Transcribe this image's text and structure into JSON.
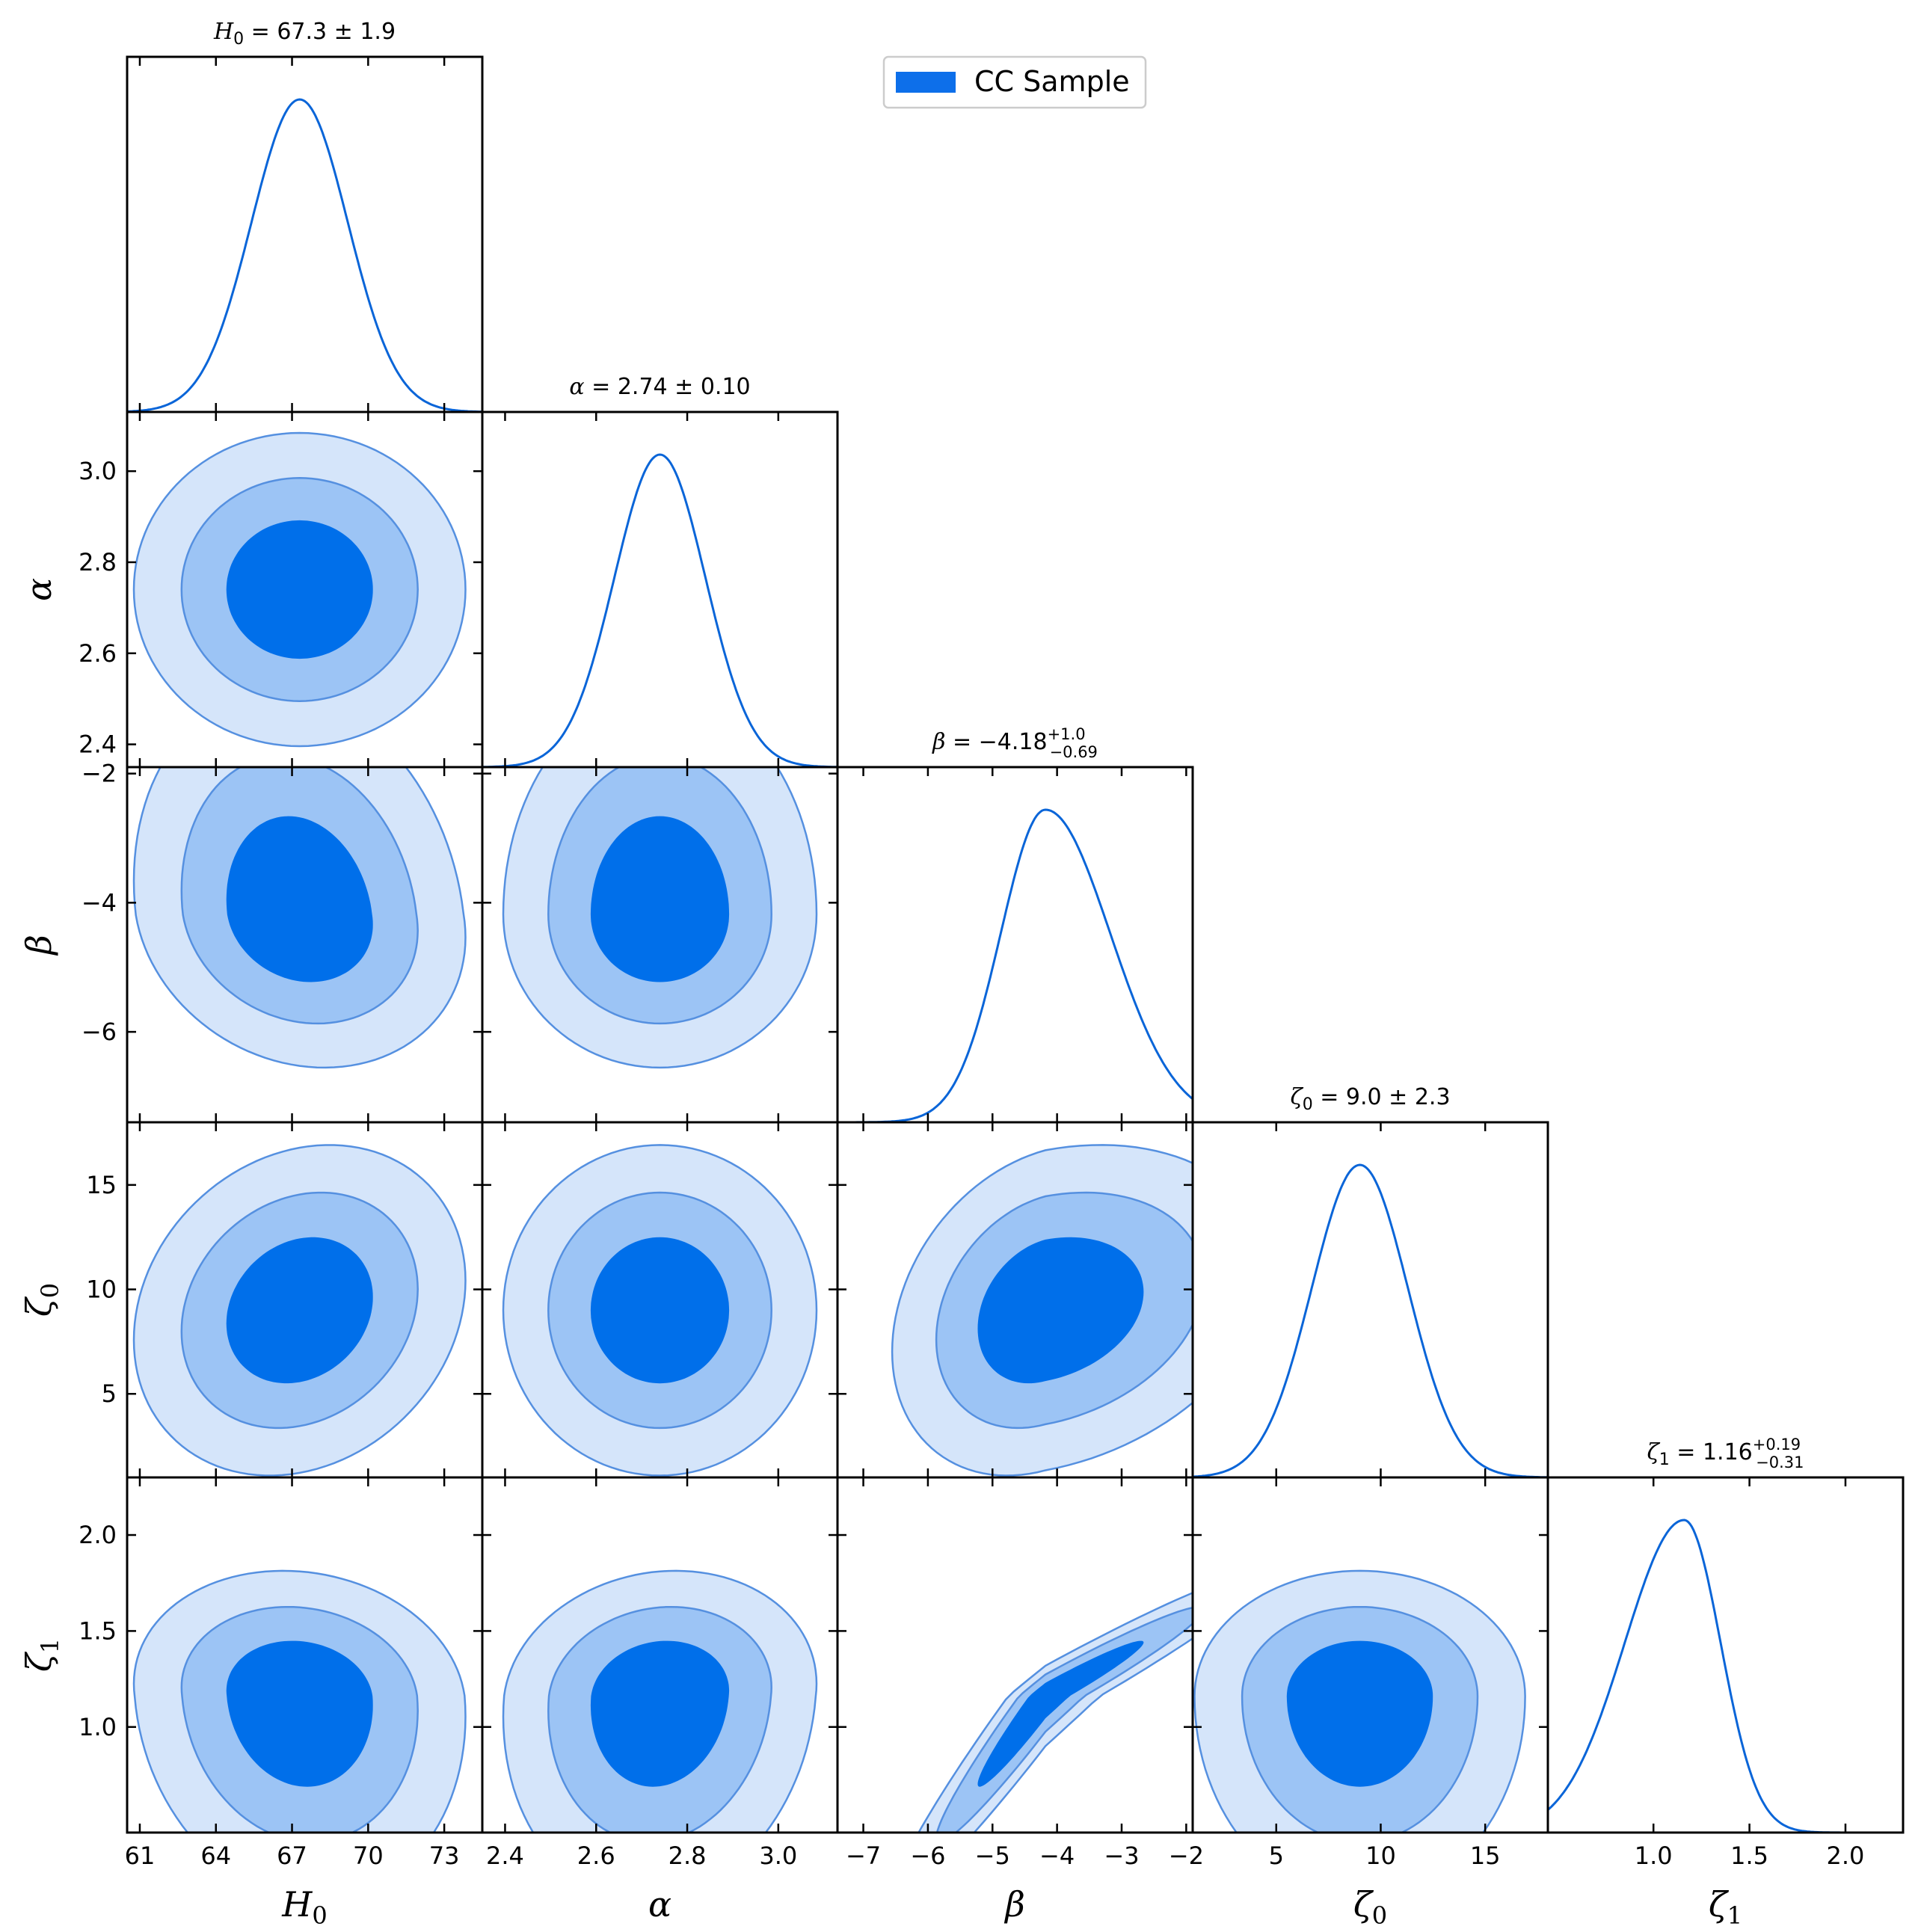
{
  "chart_data": {
    "type": "corner",
    "legend": {
      "label": "CC Sample",
      "color": "#0d6fea",
      "placement": "top-center"
    },
    "colors": {
      "c68": "#006fea",
      "c95": "#9cc4f5",
      "c99": "#d5e5fa",
      "edge": "#5590e0",
      "line": "#0a65d8"
    },
    "parameters": [
      {
        "key": "H0",
        "symbol": "H",
        "sub": "0",
        "mean": 67.3,
        "sigma": 1.9,
        "range": [
          60.5,
          74.5
        ],
        "ticks": [
          61,
          64,
          67,
          70,
          73
        ],
        "tick_labels": [
          "61",
          "64",
          "67",
          "70",
          "73"
        ],
        "title_prefix": "H",
        "title_sub": "0",
        "title_value": "= 67.3 ± 1.9"
      },
      {
        "key": "alpha",
        "symbol": "α",
        "sub": "",
        "mean": 2.74,
        "sigma": 0.1,
        "range": [
          2.35,
          3.13
        ],
        "ticks": [
          2.4,
          2.6,
          2.8,
          3.0
        ],
        "tick_labels": [
          "2.4",
          "2.6",
          "2.8",
          "3.0"
        ],
        "title_prefix": "α",
        "title_sub": "",
        "title_value": "= 2.74 ± 0.10"
      },
      {
        "key": "beta",
        "symbol": "β",
        "sub": "",
        "mean": -4.18,
        "err_plus": 1.0,
        "err_minus": 0.69,
        "range": [
          -7.4,
          -1.9
        ],
        "ticks": [
          -7,
          -6,
          -5,
          -4,
          -3,
          -2
        ],
        "tick_labels": [
          "−7",
          "−6",
          "−5",
          "−4",
          "−3",
          "−2"
        ],
        "title_prefix": "β",
        "title_sub": "",
        "title_value": "= −4.18",
        "title_sup": "+1.0",
        "title_low": "−0.69"
      },
      {
        "key": "zeta0",
        "symbol": "ζ",
        "sub": "0",
        "mean": 9.0,
        "sigma": 2.3,
        "range": [
          1.0,
          18.0
        ],
        "ticks": [
          5,
          10,
          15
        ],
        "tick_labels": [
          "5",
          "10",
          "15"
        ],
        "title_prefix": "ζ",
        "title_sub": "0",
        "title_value": "= 9.0 ± 2.3"
      },
      {
        "key": "zeta1",
        "symbol": "ζ",
        "sub": "1",
        "mean": 1.16,
        "err_plus": 0.19,
        "err_minus": 0.31,
        "range": [
          0.45,
          2.3
        ],
        "ticks": [
          1.0,
          1.5,
          2.0
        ],
        "tick_labels": [
          "1.0",
          "1.5",
          "2.0"
        ],
        "title_prefix": "ζ",
        "title_sub": "1",
        "title_value": "= 1.16",
        "title_sup": "+0.19",
        "title_low": "−0.31"
      }
    ],
    "y_axis_ticks": {
      "alpha": {
        "ticks": [
          2.4,
          2.6,
          2.8,
          3.0
        ],
        "tick_labels": [
          "2.4",
          "2.6",
          "2.8",
          "3.0"
        ]
      },
      "beta": {
        "ticks": [
          -6,
          -4,
          -2
        ],
        "tick_labels": [
          "−6",
          "−4",
          "−2"
        ]
      },
      "zeta0": {
        "ticks": [
          5,
          10,
          15
        ],
        "tick_labels": [
          "5",
          "10",
          "15"
        ]
      },
      "zeta1": {
        "ticks": [
          1.0,
          1.5,
          2.0
        ],
        "tick_labels": [
          "1.0",
          "1.5",
          "2.0"
        ]
      }
    },
    "correlations": {
      "H0|beta": -0.15,
      "H0|zeta0": 0.18,
      "H0|zeta1": -0.1,
      "alpha|zeta1": 0.1,
      "beta|zeta0": 0.25,
      "beta|zeta1": 0.97,
      "zeta0|zeta1": 0.0
    }
  }
}
